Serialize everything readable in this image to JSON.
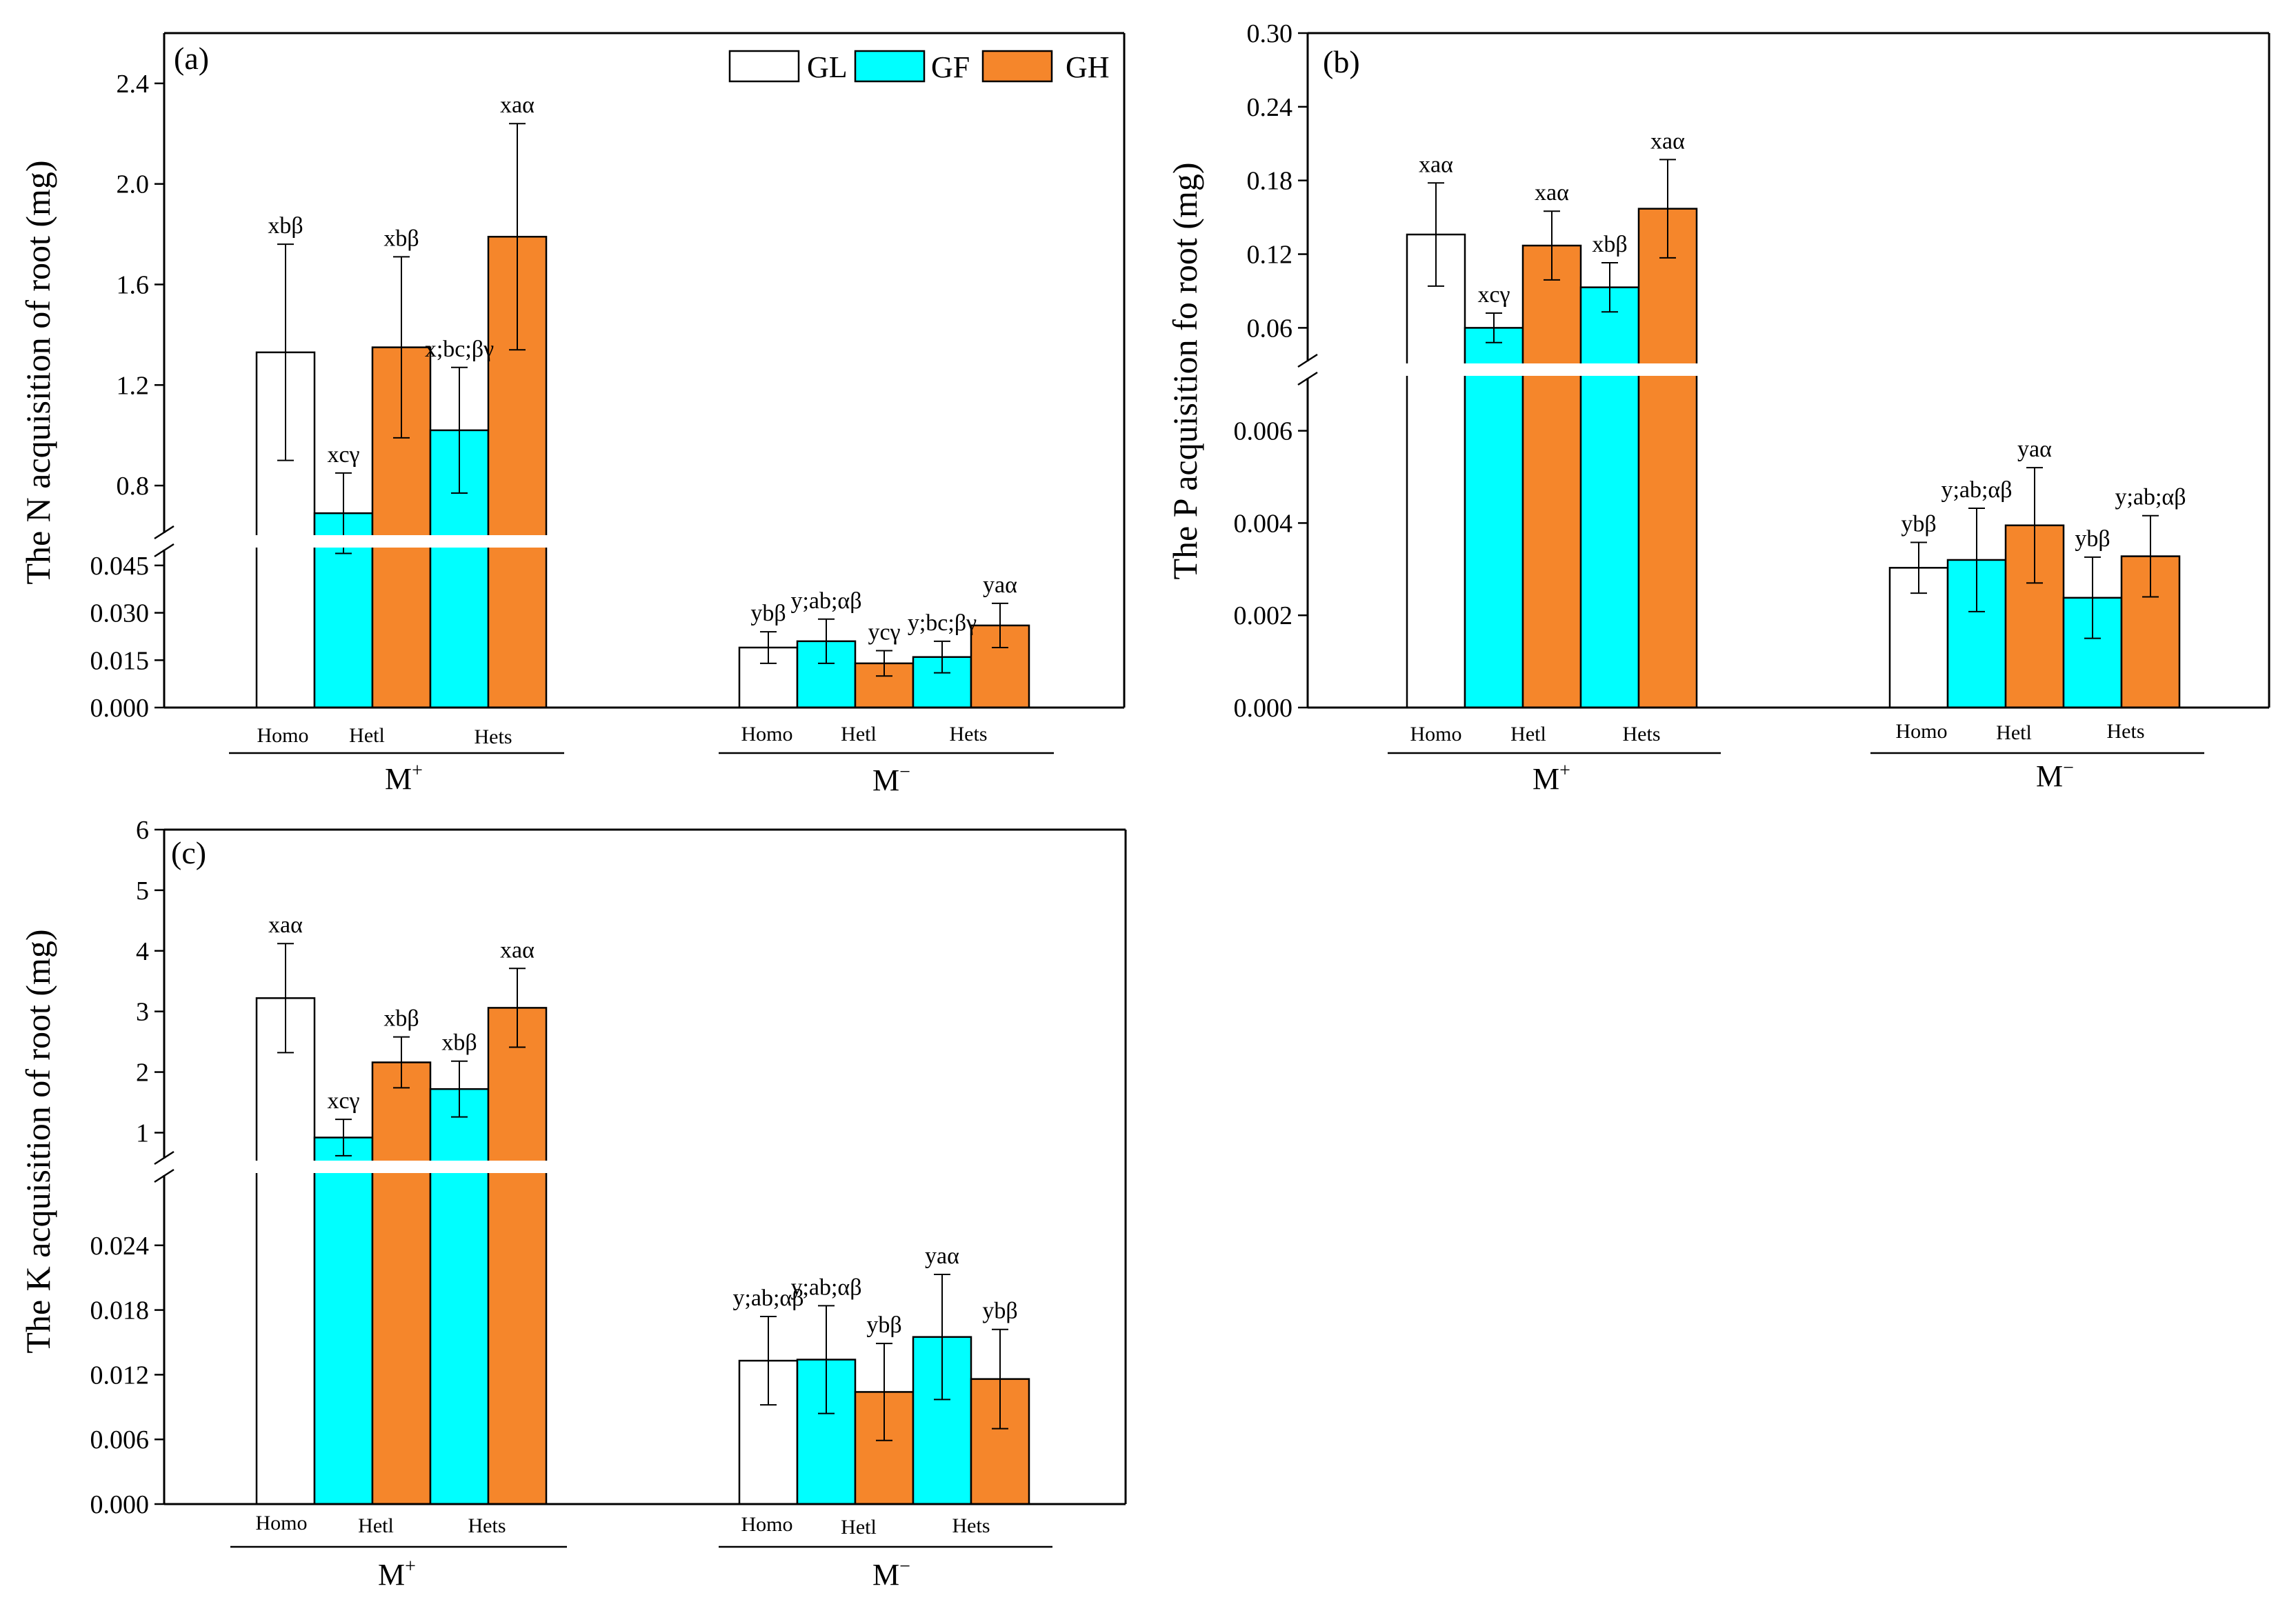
{
  "figure_title": "",
  "colors": {
    "GL": "#ffffff",
    "GF": "#00ffff",
    "GH": "#f5862b",
    "axis": "#000000"
  },
  "legend": [
    "GL",
    "GF",
    "GH"
  ],
  "chart_data": [
    {
      "type": "bar",
      "panel": "(a)",
      "ylabel": "The N acquisition of root (mg)",
      "series_order": [
        "GL",
        "GF",
        "GH",
        "GF",
        "GH"
      ],
      "groups": [
        {
          "label": "M",
          "sup": "+",
          "subgroups": [
            "Homo",
            "Hetl",
            "Hets"
          ],
          "bars": [
            {
              "series": "GL",
              "value": 1.33,
              "err": 0.43,
              "sig": "xbβ"
            },
            {
              "series": "GF",
              "value": 0.69,
              "err": 0.16,
              "sig": "xcγ"
            },
            {
              "series": "GH",
              "value": 1.35,
              "err": 0.36,
              "sig": "xbβ"
            },
            {
              "series": "GF",
              "value": 1.02,
              "err": 0.25,
              "sig": "x;bc;βγ"
            },
            {
              "series": "GH",
              "value": 1.79,
              "err": 0.45,
              "sig": "xaα"
            }
          ]
        },
        {
          "label": "M",
          "sup": "−",
          "subgroups": [
            "Homo",
            "Hetl",
            "Hets"
          ],
          "bars": [
            {
              "series": "GL",
              "value": 0.019,
              "err": 0.005,
              "sig": "ybβ"
            },
            {
              "series": "GF",
              "value": 0.021,
              "err": 0.007,
              "sig": "y;ab;αβ"
            },
            {
              "series": "GH",
              "value": 0.014,
              "err": 0.004,
              "sig": "ycγ"
            },
            {
              "series": "GF",
              "value": 0.016,
              "err": 0.005,
              "sig": "y;bc;βγ"
            },
            {
              "series": "GH",
              "value": 0.026,
              "err": 0.007,
              "sig": "yaα"
            }
          ]
        }
      ],
      "axis_break": true,
      "lower_ticks": [
        "0.000",
        "0.015",
        "0.030",
        "0.045"
      ],
      "upper_ticks": [
        "0.8",
        "1.2",
        "1.6",
        "2.0",
        "2.4"
      ],
      "lower_range": [
        0,
        0.05
      ],
      "upper_range": [
        0.6,
        2.6
      ]
    },
    {
      "type": "bar",
      "panel": "(b)",
      "ylabel": "The P acquisition fo root (mg)",
      "series_order": [
        "GL",
        "GF",
        "GH",
        "GF",
        "GH"
      ],
      "groups": [
        {
          "label": "M",
          "sup": "+",
          "subgroups": [
            "Homo",
            "Hetl",
            "Hets"
          ],
          "bars": [
            {
              "series": "GL",
              "value": 0.136,
              "err": 0.042,
              "sig": "xaα"
            },
            {
              "series": "GF",
              "value": 0.06,
              "err": 0.012,
              "sig": "xcγ"
            },
            {
              "series": "GH",
              "value": 0.127,
              "err": 0.028,
              "sig": "xaα"
            },
            {
              "series": "GF",
              "value": 0.093,
              "err": 0.02,
              "sig": "xbβ"
            },
            {
              "series": "GH",
              "value": 0.157,
              "err": 0.04,
              "sig": "xaα"
            }
          ]
        },
        {
          "label": "M",
          "sup": "−",
          "subgroups": [
            "Homo",
            "Hetl",
            "Hets"
          ],
          "bars": [
            {
              "series": "GL",
              "value": 0.00303,
              "err": 0.00055,
              "sig": "ybβ"
            },
            {
              "series": "GF",
              "value": 0.0032,
              "err": 0.00112,
              "sig": "y;ab;αβ"
            },
            {
              "series": "GH",
              "value": 0.00395,
              "err": 0.00125,
              "sig": "yaα"
            },
            {
              "series": "GF",
              "value": 0.00238,
              "err": 0.00088,
              "sig": "ybβ"
            },
            {
              "series": "GH",
              "value": 0.00328,
              "err": 0.00088,
              "sig": "y;ab;αβ"
            }
          ]
        }
      ],
      "axis_break": true,
      "lower_ticks": [
        "0.000",
        "0.002",
        "0.004",
        "0.006"
      ],
      "upper_ticks": [
        "0.06",
        "0.12",
        "0.18",
        "0.24",
        "0.30"
      ],
      "lower_range": [
        0,
        0.0074
      ],
      "upper_range": [
        0.04,
        0.3
      ]
    },
    {
      "type": "bar",
      "panel": "(c)",
      "ylabel": "The K acquisition of root (mg)",
      "series_order": [
        "GL",
        "GF",
        "GH",
        "GF",
        "GH"
      ],
      "groups": [
        {
          "label": "M",
          "sup": "+",
          "subgroups": [
            "Homo",
            "Hetl",
            "Hets"
          ],
          "bars": [
            {
              "series": "GL",
              "value": 3.22,
              "err": 0.9,
              "sig": "xaα"
            },
            {
              "series": "GF",
              "value": 0.92,
              "err": 0.3,
              "sig": "xcγ"
            },
            {
              "series": "GH",
              "value": 2.16,
              "err": 0.42,
              "sig": "xbβ"
            },
            {
              "series": "GF",
              "value": 1.72,
              "err": 0.46,
              "sig": "xbβ"
            },
            {
              "series": "GH",
              "value": 3.06,
              "err": 0.65,
              "sig": "xaα"
            }
          ]
        },
        {
          "label": "M",
          "sup": "−",
          "subgroups": [
            "Homo",
            "Hetl",
            "Hets"
          ],
          "bars": [
            {
              "series": "GL",
              "value": 0.0133,
              "err": 0.0041,
              "sig": "y;ab;αβ"
            },
            {
              "series": "GF",
              "value": 0.0134,
              "err": 0.005,
              "sig": "y;ab;αβ"
            },
            {
              "series": "GH",
              "value": 0.0104,
              "err": 0.0045,
              "sig": "ybβ"
            },
            {
              "series": "GF",
              "value": 0.0155,
              "err": 0.0058,
              "sig": "yaα"
            },
            {
              "series": "GH",
              "value": 0.0116,
              "err": 0.0046,
              "sig": "ybβ"
            }
          ]
        }
      ],
      "axis_break": true,
      "lower_ticks": [
        "0.000",
        "0.006",
        "0.012",
        "0.018",
        "0.024"
      ],
      "upper_ticks": [
        "1",
        "2",
        "3",
        "4",
        "5",
        "6"
      ],
      "lower_range": [
        0,
        0.03
      ],
      "upper_range": [
        0.55,
        6
      ]
    }
  ]
}
